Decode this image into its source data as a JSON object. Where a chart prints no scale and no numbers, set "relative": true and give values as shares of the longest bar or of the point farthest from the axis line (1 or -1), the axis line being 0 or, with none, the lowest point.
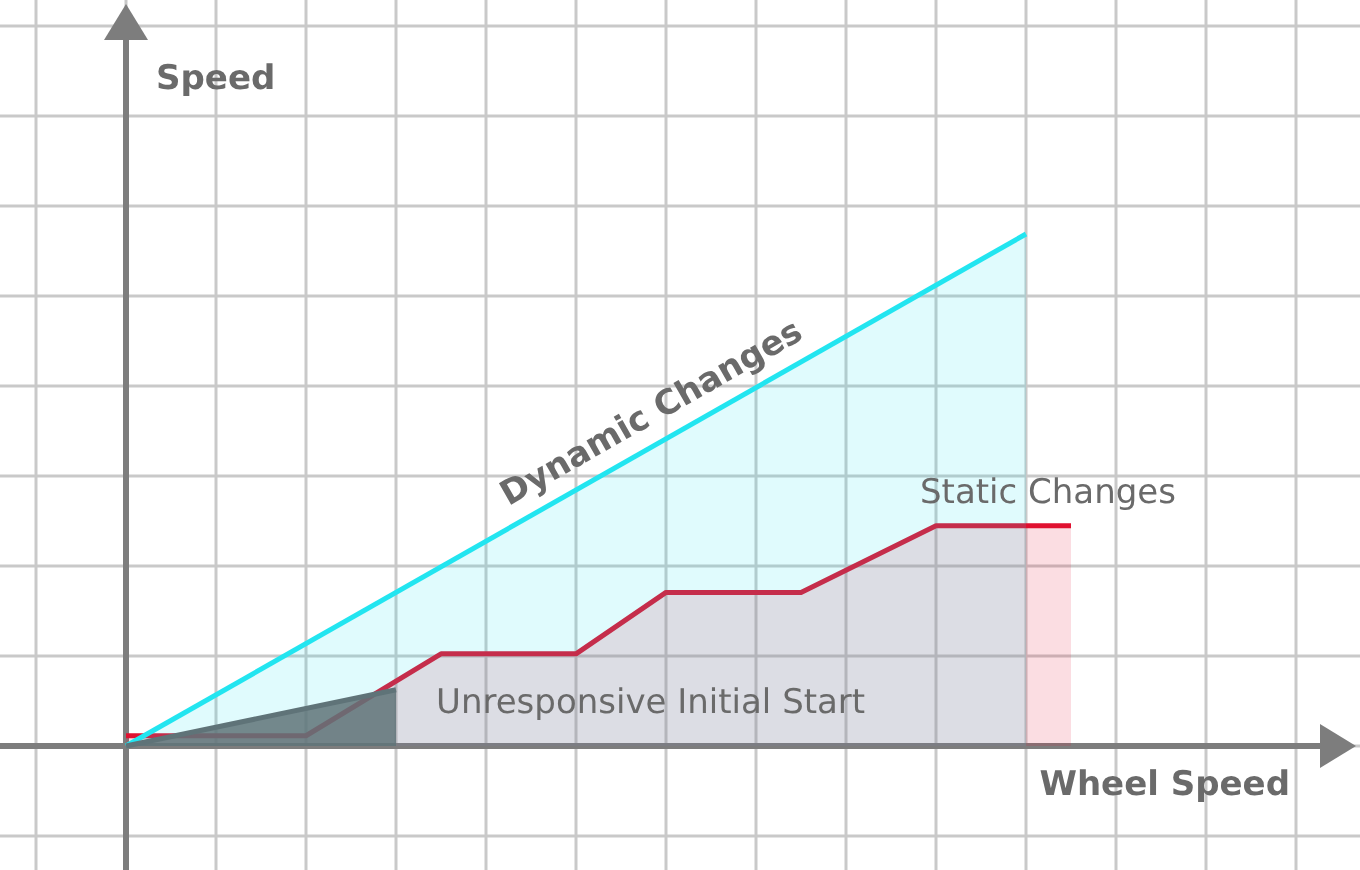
{
  "chart_data": {
    "type": "area",
    "relative": true,
    "xlabel": "Wheel Speed",
    "ylabel": "Speed",
    "grid": true,
    "legend": false,
    "categories": [
      null,
      null,
      null,
      null,
      null,
      null,
      null,
      null,
      null,
      null,
      null,
      null,
      null,
      null,
      null,
      null,
      null,
      null,
      null,
      null,
      null,
      null,
      null,
      null,
      null,
      null,
      null
    ],
    "series": [
      {
        "name": "Dynamic Changes",
        "color": "#22e5f0",
        "values": [
          0,
          null,
          null,
          null,
          null,
          null,
          null,
          null,
          null,
          null,
          null,
          null,
          null,
          null,
          null,
          null,
          null,
          null,
          null,
          null,
          1,
          null,
          null,
          null,
          null,
          null,
          null
        ]
      },
      {
        "name": "Static Changes",
        "color": "#e01030",
        "values": [
          0.02,
          null,
          null,
          null,
          0.02,
          null,
          null,
          0.18,
          null,
          null,
          0.18,
          null,
          0.3,
          null,
          null,
          0.3,
          null,
          null,
          0.43,
          null,
          null,
          0.43,
          null,
          null,
          null,
          null,
          null
        ]
      },
      {
        "name": "Unresponsive Initial Start",
        "color": "#5f7378",
        "values": [
          0,
          null,
          null,
          null,
          null,
          null,
          0.11,
          null,
          null,
          null,
          null,
          null,
          null,
          null,
          null,
          null,
          null,
          null,
          null,
          null,
          null,
          null,
          null,
          null,
          null,
          null,
          null
        ]
      }
    ]
  }
}
